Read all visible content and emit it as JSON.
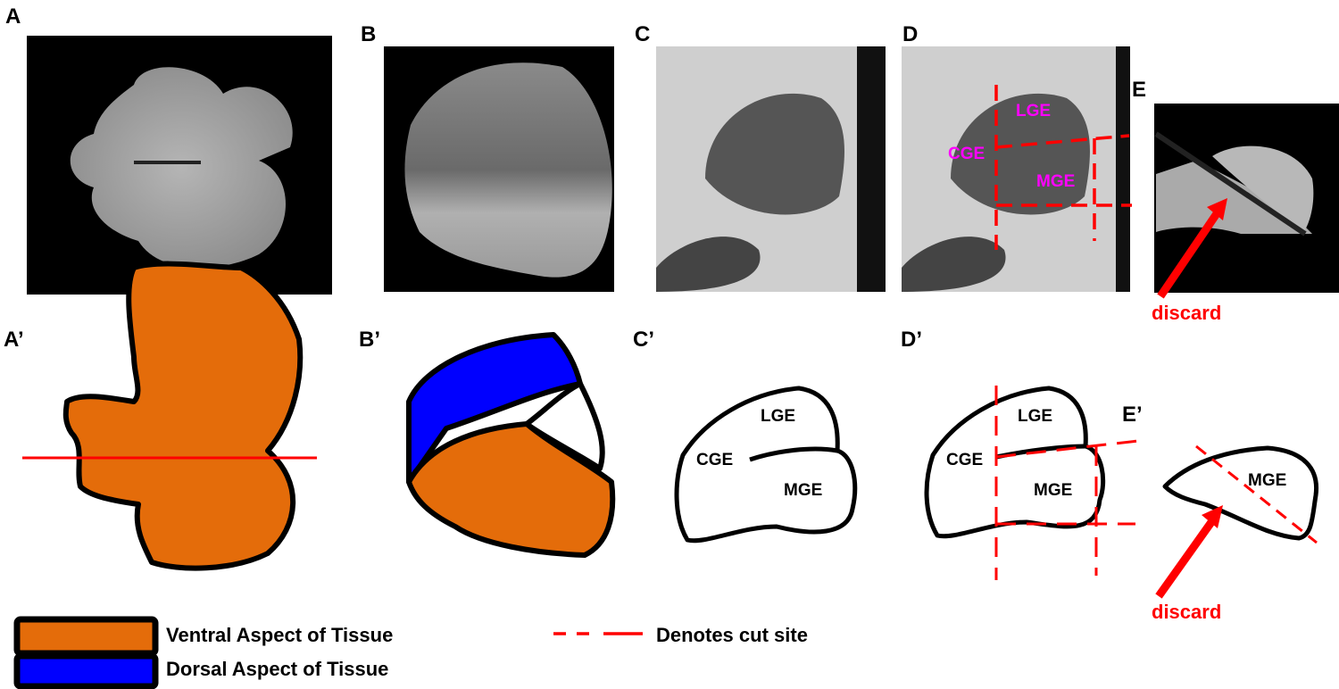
{
  "panels": {
    "A": "A",
    "B": "B",
    "C": "C",
    "D": "D",
    "E": "E",
    "A_prime": "A’",
    "B_prime": "B’",
    "C_prime": "C’",
    "D_prime": "D’",
    "E_prime": "E’"
  },
  "regions": {
    "lge": "LGE",
    "cge": "CGE",
    "mge": "MGE"
  },
  "annotations": {
    "discard": "discard"
  },
  "legend": {
    "ventral": "Ventral Aspect of Tissue",
    "dorsal": "Dorsal Aspect of Tissue",
    "cut_site": "Denotes cut site"
  },
  "colors": {
    "ventral": "#e46c0a",
    "dorsal": "#0000ff",
    "cut": "#ff0000",
    "photo_labels": "#ff00ff"
  }
}
